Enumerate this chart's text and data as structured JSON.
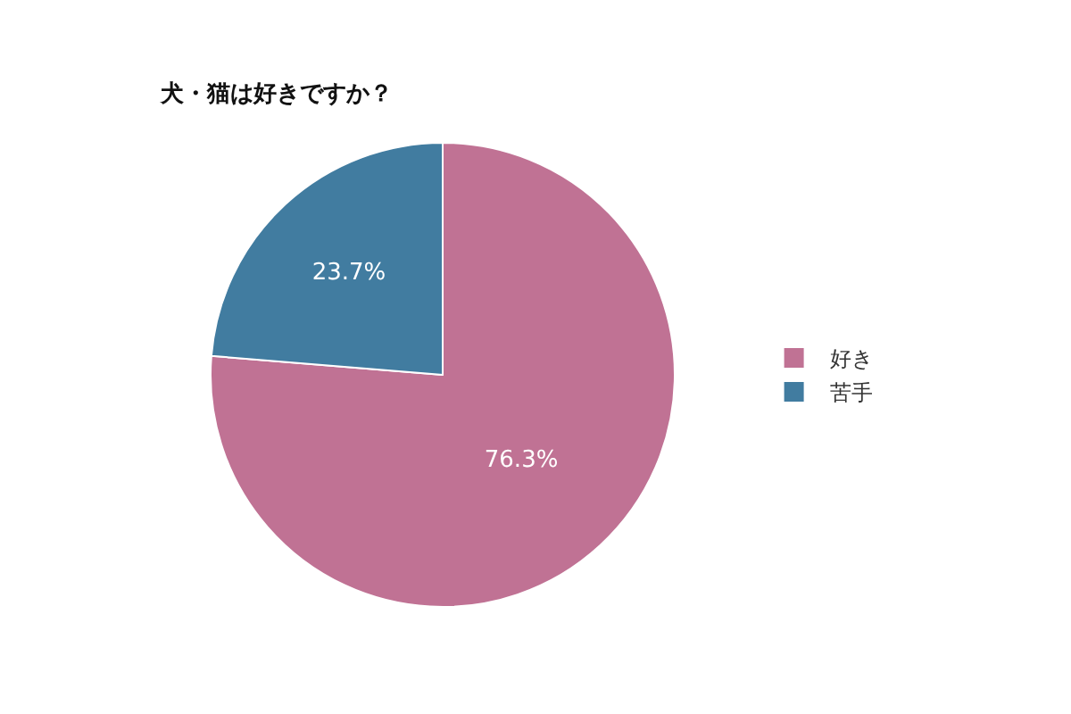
{
  "chart_data": {
    "type": "pie",
    "title": "犬・猫は好きですか？",
    "categories": [
      "好き",
      "苦手"
    ],
    "values": [
      76.3,
      23.7
    ],
    "value_labels": [
      "76.3%",
      "23.7%"
    ],
    "colors": [
      "#c07294",
      "#417ca0"
    ],
    "legend": "right"
  }
}
